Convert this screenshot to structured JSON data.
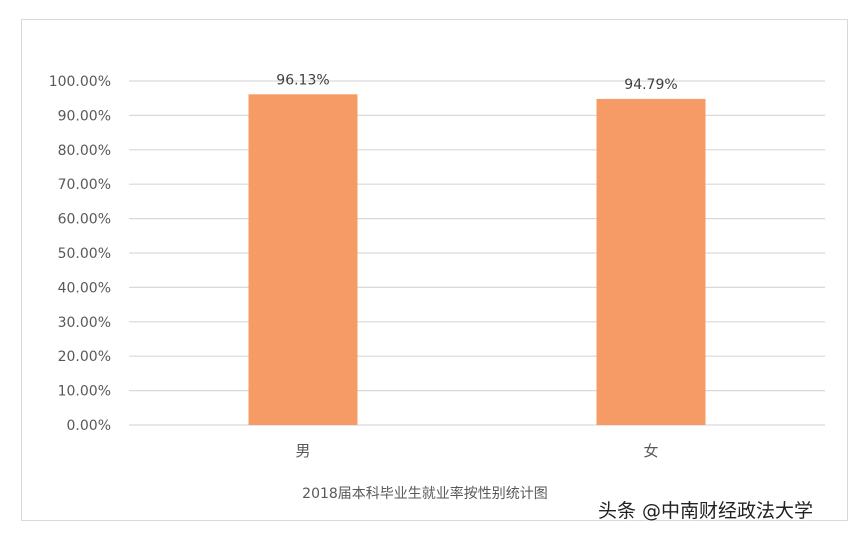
{
  "chart_data": {
    "type": "bar",
    "title": "2018届本科毕业生就业率按性别统计图",
    "categories": [
      "男",
      "女"
    ],
    "values": [
      96.13,
      94.79
    ],
    "data_labels": [
      "96.13%",
      "94.79%"
    ],
    "xlabel": "",
    "ylabel": "",
    "ylim": [
      0,
      100
    ],
    "yticks": [
      "0.00%",
      "10.00%",
      "20.00%",
      "30.00%",
      "40.00%",
      "50.00%",
      "60.00%",
      "70.00%",
      "80.00%",
      "90.00%",
      "100.00%"
    ],
    "grid": true,
    "legend": "none",
    "bar_color": "#F79B66",
    "grid_color": "#D9D9D9"
  },
  "watermark": "头条 @中南财经政法大学"
}
